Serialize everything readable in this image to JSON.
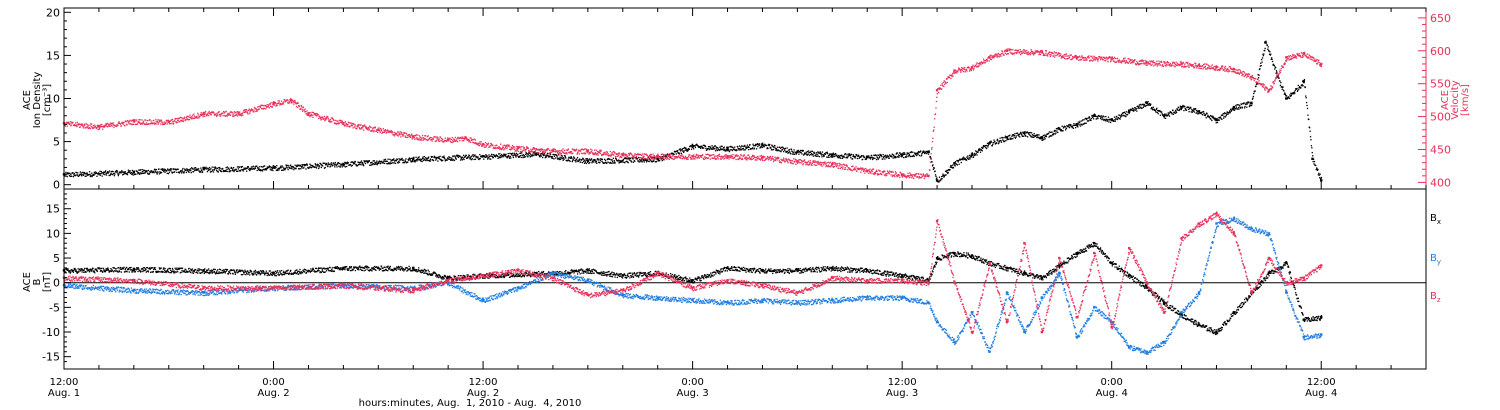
{
  "colors": {
    "density": "#000000",
    "velocity": "#e8305a",
    "bx": "#000000",
    "by": "#1f7de0",
    "bz": "#e8305a",
    "axis": "#000000"
  },
  "xaxis": {
    "title": "hours:minutes, Aug.  1, 2010 - Aug.  4, 2010",
    "range_hours": [
      0,
      78
    ],
    "ticks": [
      {
        "hour": 0,
        "time": "12:00",
        "day": "Aug. 1"
      },
      {
        "hour": 12,
        "time": "0:00",
        "day": "Aug. 2"
      },
      {
        "hour": 24,
        "time": "12:00",
        "day": "Aug. 2"
      },
      {
        "hour": 36,
        "time": "0:00",
        "day": "Aug. 3"
      },
      {
        "hour": 48,
        "time": "12:00",
        "day": "Aug. 3"
      },
      {
        "hour": 60,
        "time": "0:00",
        "day": "Aug. 4"
      },
      {
        "hour": 72,
        "time": "12:00",
        "day": "Aug. 4"
      }
    ]
  },
  "top_panel": {
    "left_label": [
      "ACE",
      "Ion Density",
      "[cm⁻³]"
    ],
    "right_label": [
      "ACE",
      "Velocity",
      "[km/s]"
    ],
    "left_ticks": [
      "0",
      "5",
      "10",
      "15",
      "20"
    ],
    "right_ticks": [
      "400",
      "450",
      "500",
      "550",
      "600",
      "650"
    ]
  },
  "bottom_panel": {
    "left_label": [
      "ACE",
      "B",
      "[nT]"
    ],
    "ticks": [
      "-15",
      "-10",
      "-5",
      "0",
      "5",
      "10",
      "15"
    ],
    "legend": {
      "bx": "B",
      "bx_sub": "x",
      "by": "B",
      "by_sub": "y",
      "bz": "B",
      "bz_sub": "z"
    }
  },
  "chart_data": [
    {
      "type": "scatter",
      "panel": "top",
      "xlabel": "hours:minutes, Aug.  1, 2010 - Aug.  4, 2010",
      "ylabel_left": "ACE Ion Density [cm⁻³]",
      "ylabel_right": "ACE Velocity [km/s]",
      "ylim_left": [
        -0.5,
        20.5
      ],
      "ylim_right": [
        390,
        665
      ],
      "series": [
        {
          "name": "Ion Density",
          "axis": "left",
          "x": [
            0,
            4,
            8,
            12,
            16,
            20,
            24,
            27,
            30,
            34,
            36,
            38,
            40,
            42,
            44,
            46,
            48,
            49.5,
            50,
            51,
            52,
            53,
            54,
            55,
            56,
            57,
            58,
            59,
            60,
            61,
            62,
            63,
            64,
            65,
            66,
            67,
            68,
            68.8,
            69.5,
            70,
            71,
            71.5,
            72
          ],
          "y": [
            1.2,
            1.5,
            1.8,
            2.0,
            2.4,
            3.0,
            3.3,
            3.6,
            2.8,
            3.0,
            4.5,
            4.2,
            4.6,
            3.8,
            3.5,
            3.2,
            3.5,
            3.8,
            0.5,
            2.5,
            3.5,
            4.8,
            5.5,
            6.0,
            5.5,
            6.5,
            7.0,
            8.0,
            7.5,
            8.5,
            9.5,
            8.0,
            9.0,
            8.5,
            7.5,
            9.0,
            9.5,
            16.5,
            12.5,
            10.0,
            12.0,
            3.0,
            0.5
          ]
        },
        {
          "name": "Velocity",
          "axis": "right",
          "x": [
            0,
            2,
            4,
            6,
            8,
            10,
            12,
            13,
            14,
            16,
            18,
            20,
            22,
            23,
            24,
            26,
            28,
            30,
            32,
            34,
            36,
            38,
            40,
            42,
            44,
            46,
            48,
            49.5,
            50,
            51,
            52,
            53,
            54,
            56,
            58,
            60,
            62,
            64,
            65,
            66,
            67,
            68,
            69,
            70,
            71,
            72
          ],
          "y": [
            490,
            485,
            493,
            492,
            505,
            505,
            520,
            525,
            505,
            490,
            480,
            470,
            465,
            468,
            458,
            452,
            448,
            448,
            442,
            440,
            440,
            440,
            438,
            432,
            428,
            418,
            412,
            410,
            540,
            570,
            575,
            590,
            600,
            598,
            590,
            588,
            582,
            580,
            578,
            575,
            572,
            560,
            540,
            590,
            595,
            580
          ]
        }
      ]
    },
    {
      "type": "scatter",
      "panel": "bottom",
      "xlabel": "hours:minutes, Aug.  1, 2010 - Aug.  4, 2010",
      "ylabel": "ACE B [nT]",
      "ylim": [
        -17.5,
        19
      ],
      "series": [
        {
          "name": "Bx",
          "x": [
            0,
            4,
            8,
            12,
            16,
            20,
            22,
            24,
            28,
            30,
            32,
            34,
            36,
            38,
            40,
            42,
            44,
            46,
            48,
            49.5,
            50,
            51,
            52,
            53,
            54,
            55,
            56,
            57,
            58,
            59,
            60,
            61,
            62,
            63,
            64,
            65,
            66,
            67,
            68,
            69,
            70,
            71,
            72
          ],
          "y": [
            2.5,
            2.8,
            2.5,
            2.0,
            3.0,
            3.0,
            1.0,
            1.5,
            2.0,
            2.5,
            1.5,
            2.0,
            0.5,
            3.0,
            2.5,
            2.5,
            3.0,
            2.5,
            1.5,
            0.5,
            5.0,
            6.0,
            5.5,
            4.0,
            3.0,
            2.0,
            1.0,
            3.5,
            6.0,
            8.0,
            4.0,
            1.5,
            -1.0,
            -4.0,
            -6.5,
            -8.5,
            -10.0,
            -6.0,
            -2.0,
            2.0,
            4.0,
            -7.5,
            -7.0
          ]
        },
        {
          "name": "By",
          "x": [
            0,
            4,
            8,
            12,
            16,
            20,
            22,
            24,
            26,
            28,
            30,
            32,
            34,
            36,
            38,
            40,
            42,
            44,
            46,
            48,
            49.5,
            50,
            51,
            52,
            53,
            54,
            55,
            56,
            57,
            58,
            59,
            60,
            61,
            62,
            63,
            64,
            65,
            66,
            67,
            68,
            69,
            70,
            71,
            72
          ],
          "y": [
            -0.5,
            -1.5,
            -2.0,
            -1.0,
            -0.5,
            -1.0,
            0.0,
            -3.5,
            -1.0,
            2.0,
            0.5,
            -2.5,
            -3.0,
            -3.5,
            -4.0,
            -3.5,
            -4.0,
            -3.5,
            -3.0,
            -3.0,
            -4.0,
            -8.0,
            -12.0,
            -6.0,
            -14.0,
            -2.0,
            -10.0,
            -3.0,
            2.0,
            -11.0,
            -5.0,
            -8.0,
            -13.0,
            -14.0,
            -12.0,
            -6.0,
            -2.0,
            12.0,
            13.0,
            11.0,
            10.0,
            -2.0,
            -11.0,
            -10.5
          ]
        },
        {
          "name": "Bz",
          "x": [
            0,
            4,
            8,
            12,
            16,
            20,
            22,
            24,
            26,
            28,
            30,
            32,
            34,
            36,
            38,
            40,
            42,
            44,
            46,
            48,
            49.5,
            50,
            51,
            52,
            53,
            54,
            55,
            56,
            57,
            58,
            59,
            60,
            61,
            62,
            63,
            64,
            65,
            66,
            67,
            68,
            69,
            70,
            71,
            72
          ],
          "y": [
            1.0,
            0.5,
            -1.0,
            -1.0,
            -0.5,
            -1.5,
            0.5,
            1.5,
            2.5,
            1.0,
            -2.5,
            -1.5,
            2.0,
            -1.0,
            0.5,
            -0.5,
            -2.0,
            1.0,
            0.5,
            0.5,
            0.0,
            12.5,
            0.0,
            -10.0,
            4.0,
            -8.0,
            8.0,
            -10.0,
            5.0,
            -7.0,
            6.0,
            -9.0,
            7.0,
            0.0,
            -6.0,
            9.0,
            12.0,
            14.0,
            10.0,
            -2.0,
            5.0,
            0.0,
            1.0,
            3.5
          ]
        }
      ]
    }
  ]
}
